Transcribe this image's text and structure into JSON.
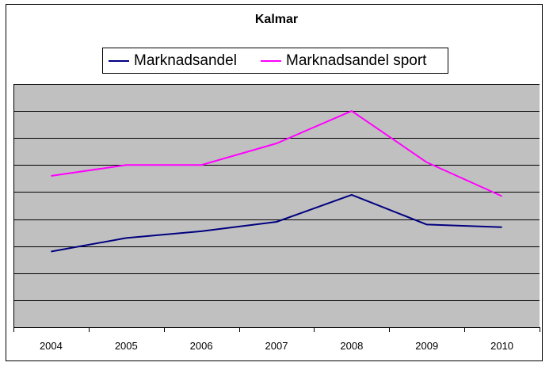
{
  "chart_data": {
    "type": "line",
    "title": "Kalmar",
    "xlabel": "",
    "ylabel": "",
    "categories": [
      "2004",
      "2005",
      "2006",
      "2007",
      "2008",
      "2009",
      "2010"
    ],
    "ylim": [
      0,
      9
    ],
    "ygrid_lines": 9,
    "y_tick_labels_shown": false,
    "grid": true,
    "legend_position": "top",
    "plot_background": "#C0C0C0",
    "series": [
      {
        "name": "Marknadsandel",
        "color": "#000080",
        "values": [
          2.8,
          3.3,
          3.55,
          3.9,
          4.9,
          3.8,
          3.7
        ]
      },
      {
        "name": "Marknadsandel sport",
        "color": "#FF00FF",
        "values": [
          5.6,
          6.0,
          6.0,
          6.8,
          8.0,
          6.1,
          4.85
        ]
      }
    ]
  }
}
